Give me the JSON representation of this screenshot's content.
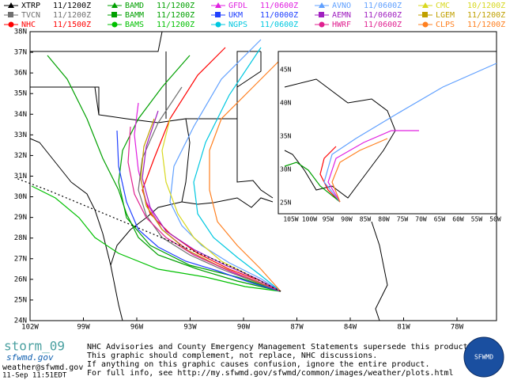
{
  "legend": [
    {
      "name": "XTRP",
      "time": "11/1200Z",
      "color": "#000000",
      "marker": "triangle"
    },
    {
      "name": "BAMD",
      "time": "11/1200Z",
      "color": "#00a000",
      "marker": "triangle"
    },
    {
      "name": "GFDL",
      "time": "11/0600Z",
      "color": "#e020e0",
      "marker": "triangle"
    },
    {
      "name": "AVNO",
      "time": "11/0600Z",
      "color": "#60a0ff",
      "marker": "triangle"
    },
    {
      "name": "CMC",
      "time": "10/1200Z",
      "color": "#d8d820",
      "marker": "triangle"
    },
    {
      "name": "TVCN",
      "time": "11/1200Z",
      "color": "#707070",
      "marker": "square"
    },
    {
      "name": "BAMM",
      "time": "11/1200Z",
      "color": "#00a000",
      "marker": "square"
    },
    {
      "name": "UKM",
      "time": "11/0000Z",
      "color": "#2040ff",
      "marker": "square"
    },
    {
      "name": "AEMN",
      "time": "11/0600Z",
      "color": "#a020c0",
      "marker": "square"
    },
    {
      "name": "LGEM",
      "time": "11/1200Z",
      "color": "#c0a000",
      "marker": "square"
    },
    {
      "name": "NHC",
      "time": "11/1500Z",
      "color": "#ff0000",
      "marker": "circle"
    },
    {
      "name": "BAMS",
      "time": "11/1200Z",
      "color": "#00c000",
      "marker": "circle"
    },
    {
      "name": "NGPS",
      "time": "11/0600Z",
      "color": "#00c8e0",
      "marker": "circle"
    },
    {
      "name": "HWRF",
      "time": "11/0600Z",
      "color": "#e02090",
      "marker": "circle"
    },
    {
      "name": "CLPS",
      "time": "11/1200Z",
      "color": "#ff8020",
      "marker": "circle"
    }
  ],
  "map": {
    "lat_labels": [
      "38N",
      "37N",
      "36N",
      "35N",
      "34N",
      "33N",
      "32N",
      "31N",
      "30N",
      "29N",
      "28N",
      "27N",
      "26N",
      "25N",
      "24N"
    ],
    "lon_labels": [
      "102W",
      "99W",
      "96W",
      "93W",
      "90W",
      "87W",
      "84W",
      "81W",
      "78W"
    ]
  },
  "inset": {
    "lat_labels": [
      "45N",
      "40N",
      "35N",
      "30N",
      "25N"
    ],
    "lon_labels": [
      "105W",
      "100W",
      "95W",
      "90W",
      "85W",
      "80W",
      "75W",
      "70W",
      "65W",
      "60W",
      "55W",
      "50W"
    ]
  },
  "footer": {
    "storm": "storm_09",
    "site": "sfwmd.gov",
    "email": "weather@sfwmd.gov",
    "date": "11-Sep 11:51EDT",
    "notice": [
      "NHC Advisories and County Emergency Management Statements supersede this product.",
      "This graphic should complement, not replace, NHC discussions.",
      "If anything on this graphic causes confusion, ignore the entire product.",
      "For full info, see  http://my.sfwmd.gov/sfwmd/common/images/weather/plots.html"
    ],
    "logo": "SFWMD"
  }
}
